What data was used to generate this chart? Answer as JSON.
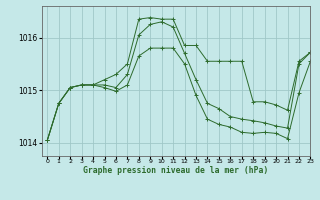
{
  "title": "Graphe pression niveau de la mer (hPa)",
  "bg_color": "#c5e8e8",
  "grid_color": "#a0c8c8",
  "line_color": "#2d6b2d",
  "xlim": [
    -0.5,
    23
  ],
  "ylim": [
    1013.75,
    1016.6
  ],
  "yticks": [
    1014,
    1015,
    1016
  ],
  "xticks": [
    0,
    1,
    2,
    3,
    4,
    5,
    6,
    7,
    8,
    9,
    10,
    11,
    12,
    13,
    14,
    15,
    16,
    17,
    18,
    19,
    20,
    21,
    22,
    23
  ],
  "series": [
    [
      1014.05,
      1014.75,
      1015.05,
      1015.1,
      1015.1,
      1015.2,
      1015.3,
      1015.5,
      1016.35,
      1016.38,
      1016.35,
      1016.35,
      1015.85,
      1015.85,
      1015.55,
      1015.55,
      1015.55,
      1015.55,
      1014.78,
      1014.78,
      1014.72,
      1014.62,
      1015.55,
      1015.72
    ],
    [
      1014.05,
      1014.75,
      1015.05,
      1015.1,
      1015.1,
      1015.1,
      1015.05,
      1015.3,
      1016.05,
      1016.25,
      1016.3,
      1016.2,
      1015.7,
      1015.2,
      1014.75,
      1014.65,
      1014.5,
      1014.45,
      1014.42,
      1014.38,
      1014.32,
      1014.28,
      1015.5,
      1015.72
    ],
    [
      1014.05,
      1014.75,
      1015.05,
      1015.1,
      1015.1,
      1015.05,
      1014.98,
      1015.1,
      1015.65,
      1015.8,
      1015.8,
      1015.8,
      1015.5,
      1014.9,
      1014.45,
      1014.35,
      1014.3,
      1014.2,
      1014.18,
      1014.2,
      1014.18,
      1014.08,
      1014.95,
      1015.55
    ]
  ]
}
